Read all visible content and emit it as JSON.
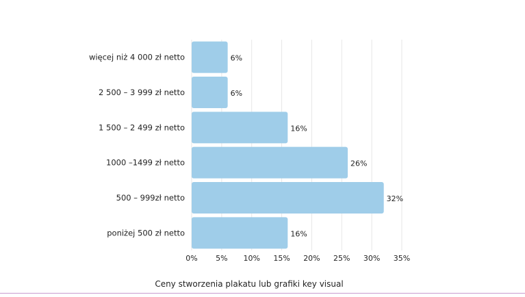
{
  "chart_data": {
    "type": "bar",
    "orientation": "horizontal",
    "categories": [
      "więcej niż 4 000 zł netto",
      "2 500 – 3 999 zł netto",
      "1 500 – 2 499 zł netto",
      "1000 –1499 zł netto",
      "500 – 999zł netto",
      "poniżej 500 zł netto"
    ],
    "values": [
      6,
      6,
      16,
      26,
      32,
      16
    ],
    "value_labels": [
      "6%",
      "6%",
      "16%",
      "26%",
      "32%",
      "16%"
    ],
    "xlim": [
      0,
      35
    ],
    "xticks": [
      0,
      5,
      10,
      15,
      20,
      25,
      30,
      35
    ],
    "xtick_labels": [
      "0%",
      "5%",
      "10%",
      "15%",
      "20%",
      "25%",
      "30%",
      "35%"
    ],
    "xlabel": "Ceny stworzenia plakatu lub grafiki key visual",
    "ylabel": "",
    "grid": "vertical",
    "bar_color": "#9fcde9",
    "grid_color": "#e6e6e6"
  }
}
